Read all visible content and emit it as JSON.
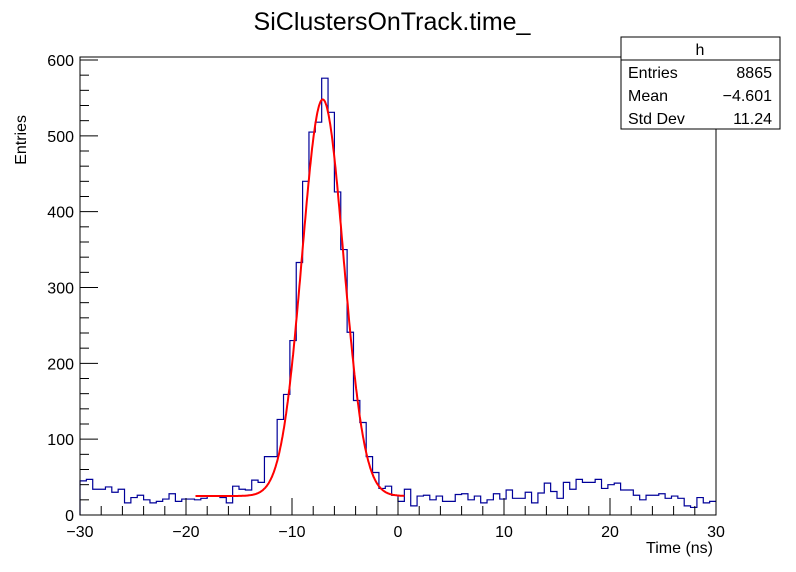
{
  "chart_data": {
    "type": "bar",
    "style": "step-histogram",
    "title": "SiClustersOnTrack.time_",
    "xlabel": "Time (ns)",
    "ylabel": "Entries",
    "xlim": [
      -30,
      30
    ],
    "ylim": [
      0,
      600
    ],
    "bin_width": 0.6,
    "x_ticks": [
      -30,
      -20,
      -10,
      0,
      10,
      20,
      30
    ],
    "x_tick_labels": [
      "−30",
      "−20",
      "−10",
      "0",
      "10",
      "20",
      "30"
    ],
    "y_ticks": [
      0,
      100,
      200,
      300,
      400,
      500,
      600
    ],
    "y_tick_labels": [
      "0",
      "100",
      "200",
      "300",
      "400",
      "500",
      "600"
    ],
    "grid": false,
    "values": [
      45,
      47,
      34,
      34,
      37,
      30,
      34,
      16,
      23,
      26,
      20,
      16,
      18,
      21,
      28,
      18,
      21,
      21,
      20,
      22,
      25,
      25,
      23,
      16,
      38,
      34,
      33,
      46,
      43,
      77,
      77,
      126,
      159,
      230,
      333,
      440,
      505,
      518,
      576,
      531,
      426,
      350,
      241,
      151,
      122,
      77,
      56,
      35,
      38,
      26,
      18,
      34,
      12,
      25,
      26,
      20,
      25,
      18,
      18,
      27,
      28,
      20,
      25,
      16,
      20,
      28,
      21,
      33,
      22,
      22,
      30,
      16,
      29,
      42,
      31,
      22,
      43,
      34,
      47,
      43,
      43,
      47,
      35,
      40,
      42,
      33,
      33,
      26,
      20,
      26,
      26,
      28,
      22,
      25,
      22,
      12,
      10,
      23,
      16,
      18
    ],
    "fit": {
      "function": "gaussian+constant",
      "constant": 25,
      "amplitude": 523,
      "mean": -7.1,
      "sigma": 1.95,
      "range": [
        -19.1,
        0.6
      ]
    },
    "colors": {
      "histogram": "#000099",
      "fit": "#ff0000"
    },
    "stats_box": {
      "title": "h",
      "position": "top-right",
      "rows": [
        {
          "label": "Entries",
          "value": "8865"
        },
        {
          "label": "Mean",
          "value": "−4.601"
        },
        {
          "label": "Std Dev",
          "value": "11.24"
        }
      ]
    }
  }
}
